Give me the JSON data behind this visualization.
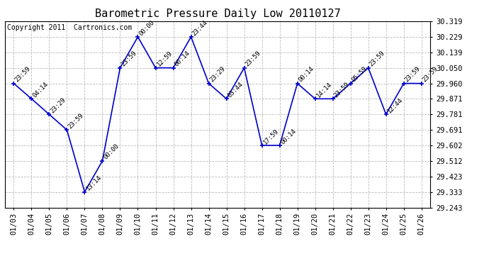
{
  "title": "Barometric Pressure Daily Low 20110127",
  "copyright": "Copyright 2011  Cartronics.com",
  "x_labels": [
    "01/03",
    "01/04",
    "01/05",
    "01/06",
    "01/07",
    "01/08",
    "01/09",
    "01/10",
    "01/11",
    "01/12",
    "01/13",
    "01/14",
    "01/15",
    "01/16",
    "01/17",
    "01/18",
    "01/19",
    "01/20",
    "01/21",
    "01/22",
    "01/23",
    "01/24",
    "01/25",
    "01/26"
  ],
  "y_values": [
    29.96,
    29.871,
    29.781,
    29.691,
    29.333,
    29.512,
    30.05,
    30.229,
    30.05,
    30.05,
    30.229,
    29.96,
    29.871,
    30.05,
    29.602,
    29.602,
    29.96,
    29.871,
    29.871,
    29.96,
    30.05,
    29.781,
    29.96,
    29.96
  ],
  "point_labels": [
    "23:59",
    "04:14",
    "23:29",
    "23:59",
    "13:14",
    "00:00",
    "23:59",
    "00:00",
    "12:59",
    "00:14",
    "23:44",
    "23:29",
    "03:44",
    "23:59",
    "17:59",
    "00:14",
    "00:14",
    "14:14",
    "23:59",
    "05:59",
    "23:59",
    "12:44",
    "23:59",
    "23:59"
  ],
  "ylim_min": 29.243,
  "ylim_max": 30.319,
  "yticks": [
    29.243,
    29.333,
    29.423,
    29.512,
    29.602,
    29.691,
    29.781,
    29.871,
    29.96,
    30.05,
    30.139,
    30.229,
    30.319
  ],
  "line_color": "#0000cc",
  "marker_color": "#0000cc",
  "background_color": "#ffffff",
  "grid_color": "#bbbbbb",
  "title_fontsize": 11,
  "copyright_fontsize": 7,
  "label_fontsize": 6.5,
  "tick_fontsize": 7.5
}
